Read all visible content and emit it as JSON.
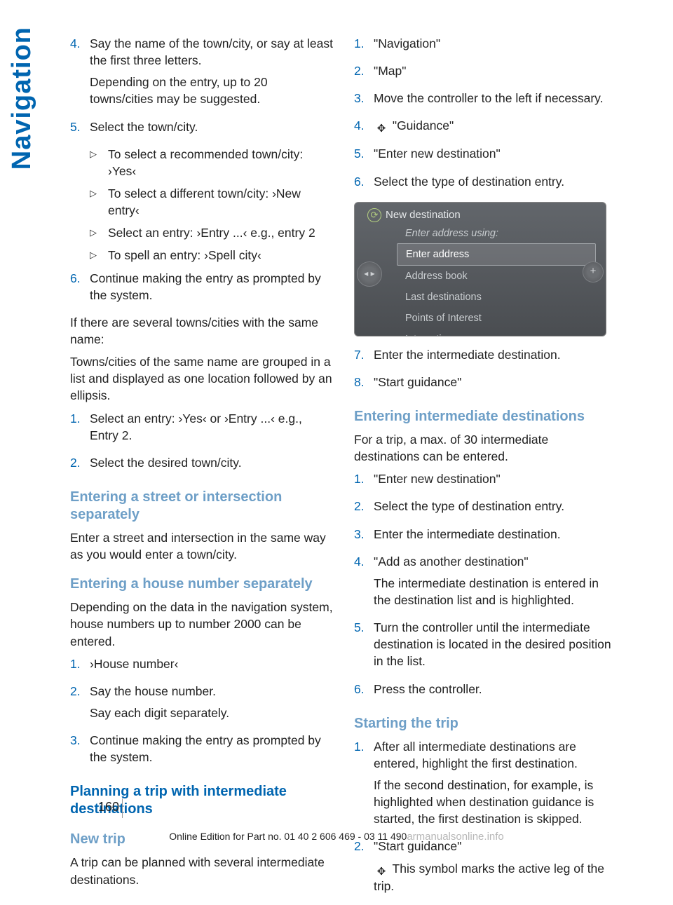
{
  "sidebar_label": "Navigation",
  "left": {
    "step4": {
      "num": "4.",
      "p1": "Say the name of the town/city, or say at least the first three letters.",
      "p2": "Depending on the entry, up to 20 towns/cities may be suggested."
    },
    "step5": {
      "num": "5.",
      "p1": "Select the town/city.",
      "b1": "To select a recommended town/city: ›Yes‹",
      "b2": "To select a different town/city: ›New entry‹",
      "b3": "Select an entry: ›Entry ...‹ e.g., entry 2",
      "b4": "To spell an entry: ›Spell city‹"
    },
    "step6": {
      "num": "6.",
      "p1": "Continue making the entry as prompted by the system."
    },
    "para1": "If there are several towns/cities with the same name:",
    "para2": "Towns/cities of the same name are grouped in a list and displayed as one location followed by an ellipsis.",
    "sub1": {
      "num": "1.",
      "p1": "Select an entry: ›Yes‹ or ›Entry ...‹ e.g., Entry 2."
    },
    "sub2": {
      "num": "2.",
      "p1": "Select the desired town/city."
    },
    "h_street": "Entering a street or intersection separately",
    "p_street": "Enter a street and intersection in the same way as you would enter a town/city.",
    "h_house": "Entering a house number separately",
    "p_house": "Depending on the data in the navigation system, house numbers up to number 2000 can be entered.",
    "hn1": {
      "num": "1.",
      "p1": "›House number‹"
    },
    "hn2": {
      "num": "2.",
      "p1": "Say the house number.",
      "p2": "Say each digit separately."
    },
    "hn3": {
      "num": "3.",
      "p1": "Continue making the entry as prompted by the system."
    },
    "h_plan": "Planning a trip with intermediate destinations",
    "h_newtrip": "New trip",
    "p_newtrip": "A trip can be planned with several intermediate destinations."
  },
  "right": {
    "r1": {
      "num": "1.",
      "p1": "\"Navigation\""
    },
    "r2": {
      "num": "2.",
      "p1": "\"Map\""
    },
    "r3": {
      "num": "3.",
      "p1": "Move the controller to the left if necessary."
    },
    "r4": {
      "num": "4.",
      "p1": " \"Guidance\""
    },
    "r5": {
      "num": "5.",
      "p1": "\"Enter new destination\""
    },
    "r6": {
      "num": "6.",
      "p1": "Select the type of destination entry."
    },
    "nav_title": "New destination",
    "nav_sub": "Enter address using:",
    "nav_items": [
      "Enter address",
      "Address book",
      "Last destinations",
      "Points of Interest",
      "Interactive map"
    ],
    "r7": {
      "num": "7.",
      "p1": "Enter the intermediate destination."
    },
    "r8": {
      "num": "8.",
      "p1": "\"Start guidance\""
    },
    "h_intermediate": "Entering intermediate destinations",
    "p_intermediate": "For a trip, a max. of 30 intermediate destinations can be entered.",
    "i1": {
      "num": "1.",
      "p1": "\"Enter new destination\""
    },
    "i2": {
      "num": "2.",
      "p1": "Select the type of destination entry."
    },
    "i3": {
      "num": "3.",
      "p1": "Enter the intermediate destination."
    },
    "i4": {
      "num": "4.",
      "p1": "\"Add as another destination\"",
      "p2": "The intermediate destination is entered in the destination list and is highlighted."
    },
    "i5": {
      "num": "5.",
      "p1": "Turn the controller until the intermediate destination is located in the desired position in the list."
    },
    "i6": {
      "num": "6.",
      "p1": "Press the controller."
    },
    "h_start": "Starting the trip",
    "s1": {
      "num": "1.",
      "p1": "After all intermediate destinations are entered, highlight the first destination.",
      "p2": "If the second destination, for example, is highlighted when destination guidance is started, the first destination is skipped."
    },
    "s2": {
      "num": "2.",
      "p1": "\"Start guidance\"",
      "p2": " This symbol marks the active leg of the trip."
    }
  },
  "page_number": "160",
  "footer_text": "Online Edition for Part no. 01 40 2 606 469 - 03 11 490",
  "watermark": "armanualsonline.info",
  "colors": {
    "accent": "#0065b0",
    "subhead": "#6e9fc7",
    "text": "#222222",
    "screenshot_bg": "#55585c",
    "screenshot_text": "#c9cdd0"
  }
}
